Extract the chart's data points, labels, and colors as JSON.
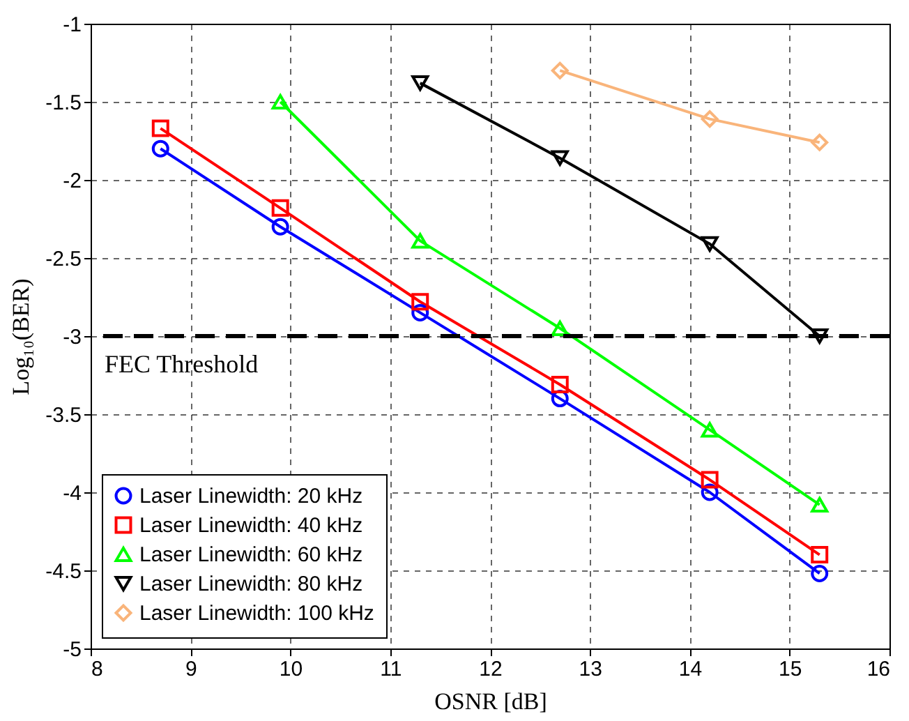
{
  "chart_data": {
    "type": "line",
    "xlabel": "OSNR [dB]",
    "ylabel": "Log₁₀(BER)",
    "xlim": [
      8,
      16
    ],
    "xticks": [
      8,
      9,
      10,
      11,
      12,
      13,
      14,
      15,
      16
    ],
    "ylim": [
      -5,
      -1
    ],
    "yticks": [
      -5,
      -4.5,
      -4,
      -3.5,
      -3,
      -2.5,
      -2,
      -1.5,
      -1
    ],
    "grid": true,
    "legend": "bottom left",
    "ref_lines": [
      {
        "axis": "y",
        "value": -3,
        "label": "FEC Threshold",
        "color": "#000000",
        "line_style": "dashed"
      }
    ],
    "series": [
      {
        "name": "Laser Linewidth: 20 kHz",
        "color": "#0000ff",
        "marker": "circle",
        "x": [
          8.7,
          9.9,
          11.3,
          12.7,
          14.2,
          15.3
        ],
        "values": [
          -1.8,
          -2.3,
          -2.85,
          -3.4,
          -4.0,
          -4.52
        ]
      },
      {
        "name": "Laser Linewidth: 40 kHz",
        "color": "#ff0000",
        "marker": "square",
        "x": [
          8.7,
          9.9,
          11.3,
          12.7,
          14.2,
          15.3
        ],
        "values": [
          -1.67,
          -2.18,
          -2.78,
          -3.31,
          -3.92,
          -4.4
        ]
      },
      {
        "name": "Laser Linewidth: 60 kHz",
        "color": "#00ff00",
        "marker": "triangle",
        "x": [
          9.9,
          11.3,
          12.7,
          14.2,
          15.3
        ],
        "values": [
          -1.5,
          -2.39,
          -2.95,
          -3.6,
          -4.08
        ]
      },
      {
        "name": "Laser Linewidth: 80 kHz",
        "color": "#000000",
        "marker": "triangle-down",
        "x": [
          11.3,
          12.7,
          14.2,
          15.3
        ],
        "values": [
          -1.38,
          -1.86,
          -2.41,
          -3.0
        ]
      },
      {
        "name": "Laser Linewidth: 100 kHz",
        "color": "#f9b47a",
        "marker": "diamond",
        "x": [
          12.7,
          14.2,
          15.3
        ],
        "values": [
          -1.3,
          -1.61,
          -1.76
        ]
      }
    ]
  }
}
